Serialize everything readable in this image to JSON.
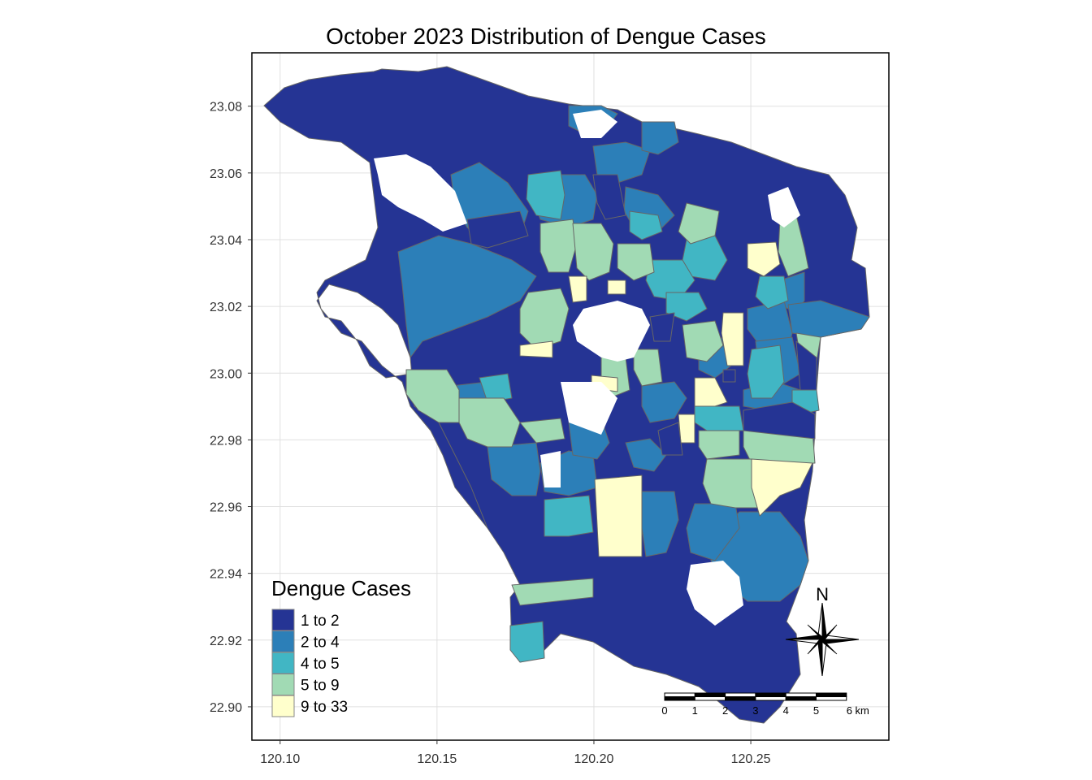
{
  "title": "October 2023 Distribution of Dengue Cases",
  "x_axis": {
    "ticks": [
      "120.10",
      "120.15",
      "120.20",
      "120.25"
    ],
    "range": [
      120.091,
      120.294
    ]
  },
  "y_axis": {
    "ticks": [
      "22.90",
      "22.92",
      "22.94",
      "22.96",
      "22.98",
      "23.00",
      "23.02",
      "23.04",
      "23.06",
      "23.08"
    ],
    "range": [
      22.89,
      23.096
    ]
  },
  "legend": {
    "title": "Dengue Cases",
    "placement": "bottom-left",
    "items": [
      {
        "label": "1 to 2",
        "color": "#253494"
      },
      {
        "label": "2 to 4",
        "color": "#2c7fb8"
      },
      {
        "label": "4 to 5",
        "color": "#41b6c4"
      },
      {
        "label": "5 to 9",
        "color": "#a1dab4"
      },
      {
        "label": "9 to 33",
        "color": "#ffffcc"
      }
    ]
  },
  "scale_bar": {
    "labels": [
      "0",
      "1",
      "2",
      "3",
      "4",
      "5",
      "6 km"
    ]
  },
  "north_arrow": {
    "label": "N"
  },
  "colors": {
    "border": "#666666",
    "grid": "#e0e0e0",
    "panel_border": "#000000"
  }
}
